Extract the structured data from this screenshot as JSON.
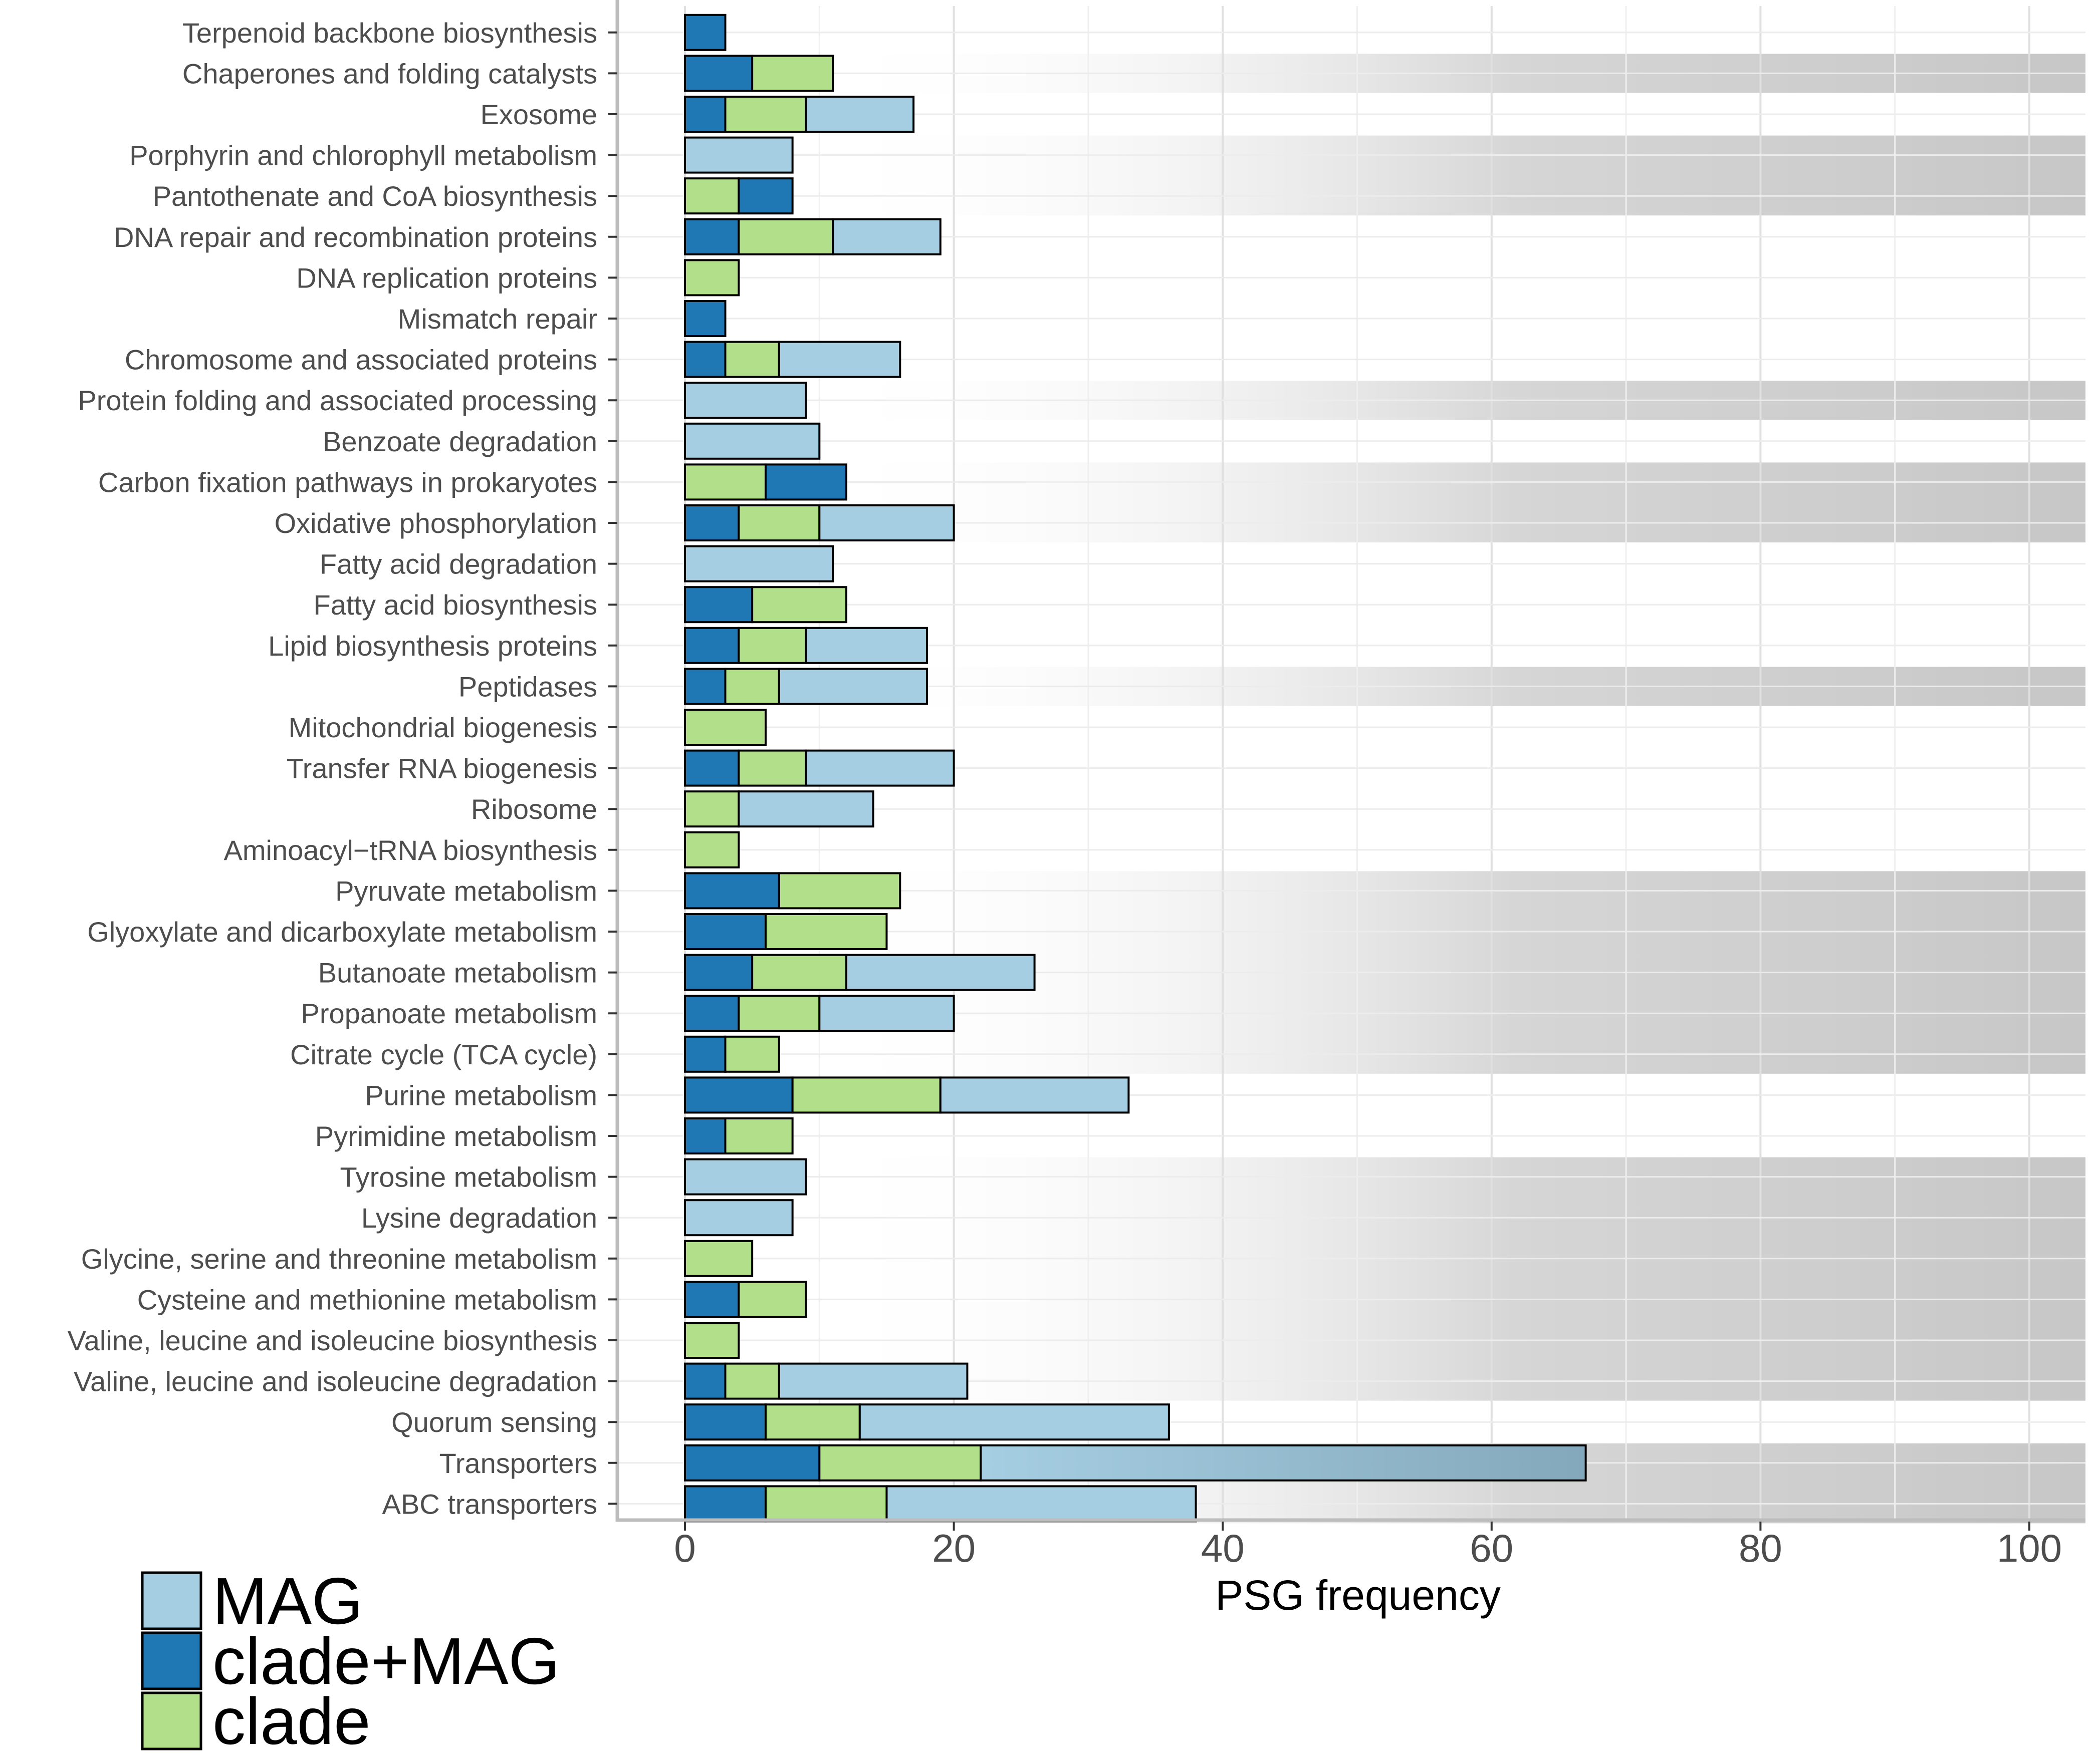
{
  "chart_data": {
    "type": "bar",
    "orientation": "horizontal",
    "stacked": true,
    "xlabel": "PSG frequency",
    "ylabel": "",
    "xlim": [
      -5,
      104
    ],
    "x_ticks": [
      0,
      20,
      40,
      60,
      80,
      100
    ],
    "grid": true,
    "legend_position": "bottom-left",
    "categories": [
      "Terpenoid backbone biosynthesis",
      "Chaperones and folding catalysts",
      "Exosome",
      "Porphyrin and chlorophyll metabolism",
      "Pantothenate and CoA biosynthesis",
      "DNA repair and recombination proteins",
      "DNA replication proteins",
      "Mismatch repair",
      "Chromosome and associated proteins",
      "Protein folding and associated processing",
      "Benzoate degradation",
      "Carbon fixation pathways in prokaryotes",
      "Oxidative phosphorylation",
      "Fatty acid degradation",
      "Fatty acid biosynthesis",
      "Lipid biosynthesis proteins",
      "Peptidases",
      "Mitochondrial biogenesis",
      "Transfer RNA biogenesis",
      "Ribosome",
      "Aminoacyl−tRNA biosynthesis",
      "Pyruvate metabolism",
      "Glyoxylate and dicarboxylate metabolism",
      "Butanoate metabolism",
      "Propanoate metabolism",
      "Citrate cycle (TCA cycle)",
      "Purine metabolism",
      "Pyrimidine metabolism",
      "Tyrosine metabolism",
      "Lysine degradation",
      "Glycine, serine and threonine metabolism",
      "Cysteine and methionine metabolism",
      "Valine, leucine and isoleucine biosynthesis",
      "Valine, leucine and isoleucine degradation",
      "Quorum sensing",
      "Transporters",
      "ABC transporters"
    ],
    "bars": [
      [
        {
          "series": "clade+MAG",
          "value": 3
        }
      ],
      [
        {
          "series": "clade+MAG",
          "value": 5
        },
        {
          "series": "clade",
          "value": 6
        }
      ],
      [
        {
          "series": "clade+MAG",
          "value": 3
        },
        {
          "series": "clade",
          "value": 6
        },
        {
          "series": "MAG",
          "value": 8
        }
      ],
      [
        {
          "series": "MAG",
          "value": 8
        }
      ],
      [
        {
          "series": "clade",
          "value": 4
        },
        {
          "series": "clade+MAG",
          "value": 4
        }
      ],
      [
        {
          "series": "clade+MAG",
          "value": 4
        },
        {
          "series": "clade",
          "value": 7
        },
        {
          "series": "MAG",
          "value": 8
        }
      ],
      [
        {
          "series": "clade",
          "value": 4
        }
      ],
      [
        {
          "series": "clade+MAG",
          "value": 3
        }
      ],
      [
        {
          "series": "clade+MAG",
          "value": 3
        },
        {
          "series": "clade",
          "value": 4
        },
        {
          "series": "MAG",
          "value": 9
        }
      ],
      [
        {
          "series": "MAG",
          "value": 9
        }
      ],
      [
        {
          "series": "MAG",
          "value": 10
        }
      ],
      [
        {
          "series": "clade",
          "value": 6
        },
        {
          "series": "clade+MAG",
          "value": 6
        }
      ],
      [
        {
          "series": "clade+MAG",
          "value": 4
        },
        {
          "series": "clade",
          "value": 6
        },
        {
          "series": "MAG",
          "value": 10
        }
      ],
      [
        {
          "series": "MAG",
          "value": 11
        }
      ],
      [
        {
          "series": "clade+MAG",
          "value": 5
        },
        {
          "series": "clade",
          "value": 7
        }
      ],
      [
        {
          "series": "clade+MAG",
          "value": 4
        },
        {
          "series": "clade",
          "value": 5
        },
        {
          "series": "MAG",
          "value": 9
        }
      ],
      [
        {
          "series": "clade+MAG",
          "value": 3
        },
        {
          "series": "clade",
          "value": 4
        },
        {
          "series": "MAG",
          "value": 11
        }
      ],
      [
        {
          "series": "clade",
          "value": 6
        }
      ],
      [
        {
          "series": "clade+MAG",
          "value": 4
        },
        {
          "series": "clade",
          "value": 5
        },
        {
          "series": "MAG",
          "value": 11
        }
      ],
      [
        {
          "series": "clade",
          "value": 4
        },
        {
          "series": "MAG",
          "value": 10
        }
      ],
      [
        {
          "series": "clade",
          "value": 4
        }
      ],
      [
        {
          "series": "clade+MAG",
          "value": 7
        },
        {
          "series": "clade",
          "value": 9
        }
      ],
      [
        {
          "series": "clade+MAG",
          "value": 6
        },
        {
          "series": "clade",
          "value": 9
        }
      ],
      [
        {
          "series": "clade+MAG",
          "value": 5
        },
        {
          "series": "clade",
          "value": 7
        },
        {
          "series": "MAG",
          "value": 14
        }
      ],
      [
        {
          "series": "clade+MAG",
          "value": 4
        },
        {
          "series": "clade",
          "value": 6
        },
        {
          "series": "MAG",
          "value": 10
        }
      ],
      [
        {
          "series": "clade+MAG",
          "value": 3
        },
        {
          "series": "clade",
          "value": 4
        }
      ],
      [
        {
          "series": "clade+MAG",
          "value": 8
        },
        {
          "series": "clade",
          "value": 11
        },
        {
          "series": "MAG",
          "value": 14
        }
      ],
      [
        {
          "series": "clade+MAG",
          "value": 3
        },
        {
          "series": "clade",
          "value": 5
        }
      ],
      [
        {
          "series": "MAG",
          "value": 9
        }
      ],
      [
        {
          "series": "MAG",
          "value": 8
        }
      ],
      [
        {
          "series": "clade",
          "value": 5
        }
      ],
      [
        {
          "series": "clade+MAG",
          "value": 4
        },
        {
          "series": "clade",
          "value": 5
        }
      ],
      [
        {
          "series": "clade",
          "value": 4
        }
      ],
      [
        {
          "series": "clade+MAG",
          "value": 3
        },
        {
          "series": "clade",
          "value": 4
        },
        {
          "series": "MAG",
          "value": 14
        }
      ],
      [
        {
          "series": "clade+MAG",
          "value": 6
        },
        {
          "series": "clade",
          "value": 7
        },
        {
          "series": "MAG",
          "value": 23
        }
      ],
      [
        {
          "series": "clade+MAG",
          "value": 10
        },
        {
          "series": "clade",
          "value": 12
        },
        {
          "series": "MAG",
          "value": 45
        }
      ],
      [
        {
          "series": "clade+MAG",
          "value": 6
        },
        {
          "series": "clade",
          "value": 9
        },
        {
          "series": "MAG",
          "value": 23
        }
      ]
    ],
    "background_bands": [
      {
        "from": "Chaperones and folding catalysts",
        "to": "Chaperones and folding catalysts"
      },
      {
        "from": "Porphyrin and chlorophyll metabolism",
        "to": "Pantothenate and CoA biosynthesis"
      },
      {
        "from": "Protein folding and associated processing",
        "to": "Protein folding and associated processing"
      },
      {
        "from": "Carbon fixation pathways in prokaryotes",
        "to": "Oxidative phosphorylation"
      },
      {
        "from": "Peptidases",
        "to": "Peptidases"
      },
      {
        "from": "Pyruvate metabolism",
        "to": "Citrate cycle (TCA cycle)"
      },
      {
        "from": "Tyrosine metabolism",
        "to": "Valine, leucine and isoleucine degradation"
      },
      {
        "from": "Transporters",
        "to": "ABC transporters"
      }
    ],
    "series": [
      {
        "name": "MAG",
        "color": "#a6cee3"
      },
      {
        "name": "clade+MAG",
        "color": "#1f78b4"
      },
      {
        "name": "clade",
        "color": "#b2df8a"
      }
    ],
    "legend": [
      "MAG",
      "clade+MAG",
      "clade"
    ]
  }
}
